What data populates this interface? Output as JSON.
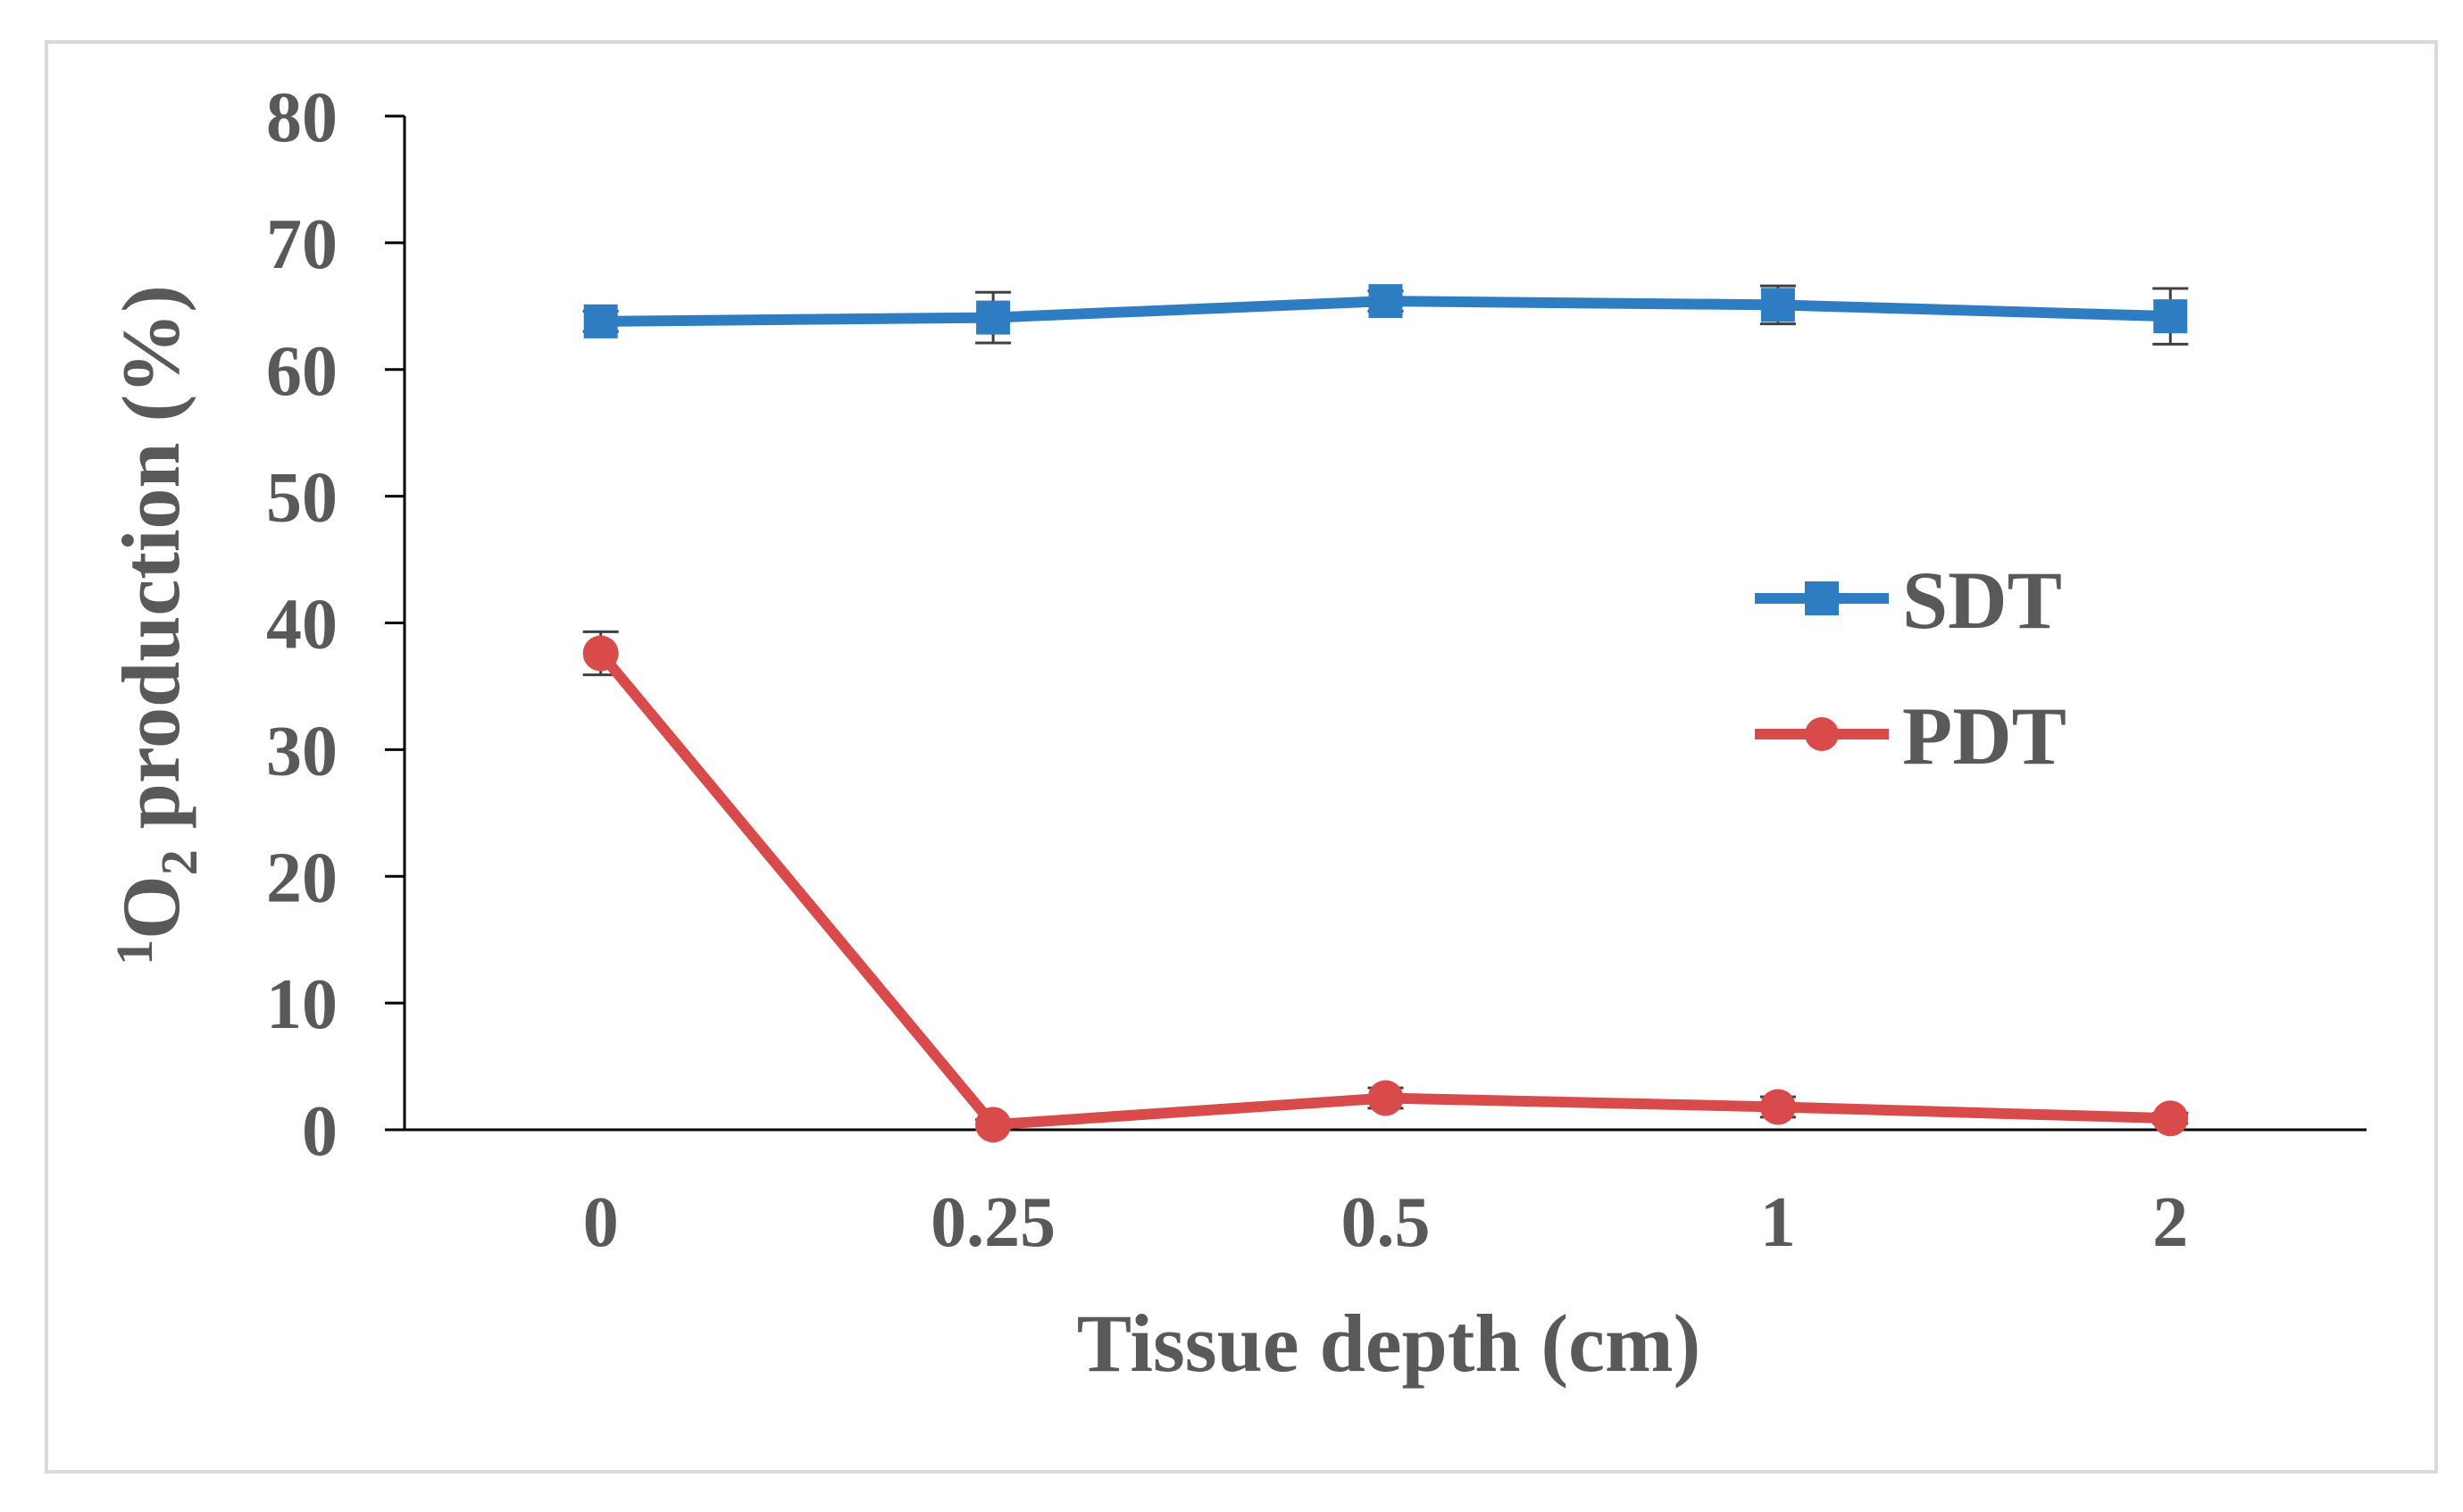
{
  "chart_data": {
    "type": "line",
    "title": "",
    "xlabel": "Tissue depth (cm)",
    "ylabel": {
      "superscript": "1",
      "main": "O",
      "subscript": "2",
      "rest": " production (%)"
    },
    "categories": [
      "0",
      "0.25",
      "0.5",
      "1",
      "2"
    ],
    "ylim": [
      0,
      80
    ],
    "yticks": [
      0,
      10,
      20,
      30,
      40,
      50,
      60,
      70,
      80
    ],
    "grid": false,
    "legend_position": "right",
    "series": [
      {
        "name": "SDT",
        "color": "#2e7dc2",
        "marker": "square",
        "values": [
          63.8,
          64.1,
          65.4,
          65.1,
          64.2
        ],
        "errors": [
          0.8,
          2.0,
          0.8,
          1.5,
          2.2
        ]
      },
      {
        "name": "PDT",
        "color": "#d94b4b",
        "marker": "circle",
        "values": [
          37.6,
          0.4,
          2.5,
          1.8,
          0.9
        ],
        "errors": [
          1.7,
          0.4,
          0.8,
          0.8,
          0.4
        ]
      }
    ]
  }
}
